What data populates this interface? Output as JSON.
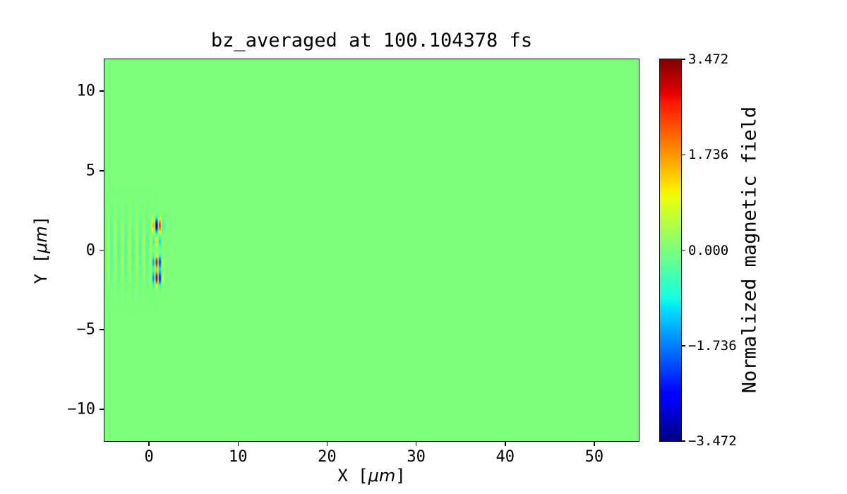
{
  "figure": {
    "background_color": "#ffffff",
    "zero_field_color": "#7bff7b"
  },
  "chart_data": {
    "type": "heatmap",
    "title": "bz_averaged at 100.104378 fs",
    "xlabel": {
      "text": "X [μm]",
      "pre": "X [",
      "unit": "μm",
      "post": "]"
    },
    "ylabel": {
      "text": "Y [μm]",
      "pre": "Y [",
      "unit": "μm",
      "post": "]"
    },
    "xlim": [
      -5,
      55
    ],
    "ylim": [
      -12,
      12
    ],
    "xticks": [
      {
        "v": 0,
        "label": "0"
      },
      {
        "v": 10,
        "label": "10"
      },
      {
        "v": 20,
        "label": "20"
      },
      {
        "v": 30,
        "label": "30"
      },
      {
        "v": 40,
        "label": "40"
      },
      {
        "v": 50,
        "label": "50"
      }
    ],
    "yticks": [
      {
        "v": 10,
        "label": "10"
      },
      {
        "v": 5,
        "label": "5"
      },
      {
        "v": 0,
        "label": "0"
      },
      {
        "v": -5,
        "label": "−5"
      },
      {
        "v": -10,
        "label": "−10"
      }
    ],
    "grid": false,
    "colorbar": {
      "label": "Normalized magnetic field",
      "colormap": "jet",
      "vmin": -3.472,
      "vmax": 3.472,
      "ticks": [
        {
          "v": 3.472,
          "label": "3.472"
        },
        {
          "v": 1.736,
          "label": "1.736"
        },
        {
          "v": 0,
          "label": "0.000"
        },
        {
          "v": -1.736,
          "label": "−1.736"
        },
        {
          "v": -3.472,
          "label": "−3.472"
        }
      ]
    },
    "field": {
      "summary": "Uniform zero-value (light green) background over x∈[-5,55] μm, y∈[-12,12] μm, except a laser pulse near the origin: a faint vertically-striped tail from x≈-4.7 to x≈0.3 μm for |y|≲3 μm (wavelength ≈0.8 μm, |bz|≲0.6) and strong saturated lobes at x≈0.4–1.5 μm: negative (dark blue) near y≈+1.6, weak positive near y≈+0.6, positive (orange) near y≈-0.8, positive (red) near y≈-1.8 with a negative (blue) spot to its right; peak amplitudes reach ±3.472.",
      "background_value": 0,
      "wavelength": 0.8,
      "tail": {
        "x_start": -4.7,
        "x_end": 0.3,
        "amp": 0.55,
        "sigma_y": 2.0
      },
      "front": {
        "x_center": 0.95,
        "sigma_x": 0.55,
        "phase": 1.2,
        "lobes": [
          {
            "y": 1.55,
            "sigma": 0.45,
            "amp": -3.6
          },
          {
            "y": 0.55,
            "sigma": 0.33,
            "amp": 1.6
          },
          {
            "y": -0.75,
            "sigma": 0.4,
            "amp": 3.2
          },
          {
            "y": -1.75,
            "sigma": 0.45,
            "amp": 3.6
          }
        ]
      }
    }
  }
}
